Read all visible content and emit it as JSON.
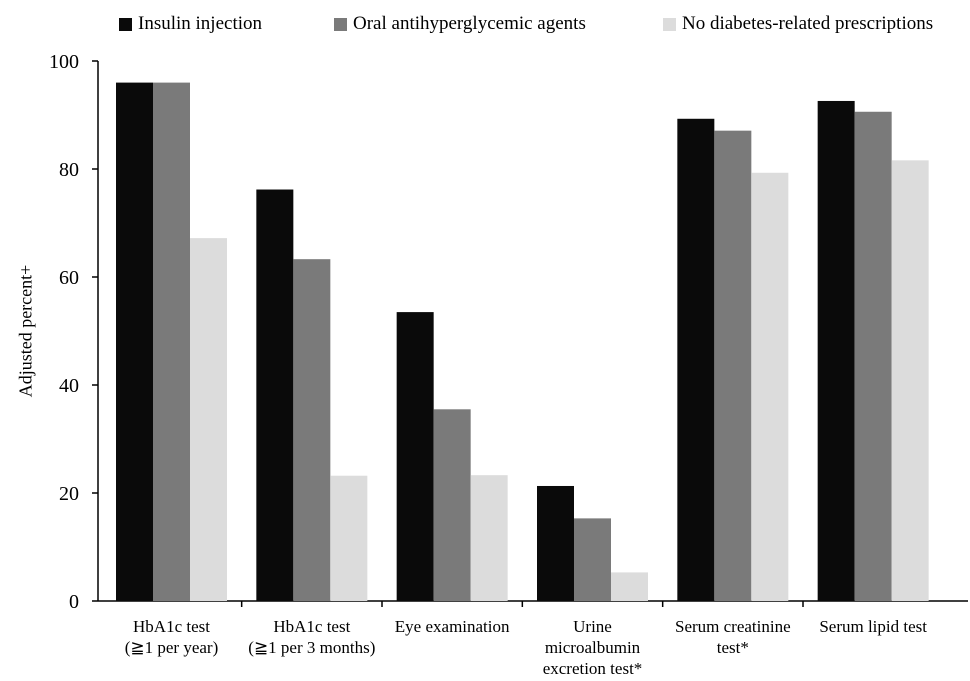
{
  "chart_data": {
    "type": "bar",
    "ylabel": "Adjusted percent+",
    "ylim": [
      0,
      100
    ],
    "yticks": [
      "0",
      "20",
      "40",
      "60",
      "80",
      "100"
    ],
    "grid": false,
    "legend_position": "top",
    "categories": [
      [
        "HbA1c test",
        "(≧1 per year)"
      ],
      [
        "HbA1c test",
        "(≧1 per 3 months)"
      ],
      [
        "Eye examination"
      ],
      [
        "Urine",
        "microalbumin",
        "excretion test*"
      ],
      [
        "Serum creatinine",
        "test*"
      ],
      [
        "Serum lipid test"
      ]
    ],
    "series": [
      {
        "name": "Insulin injection",
        "color": "#0a0a0a",
        "values": [
          96,
          76.2,
          53.5,
          21.3,
          89.3,
          92.6
        ]
      },
      {
        "name": "Oral antihyperglycemic agents",
        "color": "#7a7a7a",
        "values": [
          96,
          63.3,
          35.5,
          15.3,
          87.1,
          90.6
        ]
      },
      {
        "name": "No diabetes-related prescriptions",
        "color": "#dcdcdc",
        "values": [
          67.2,
          23.2,
          23.3,
          5.3,
          79.3,
          81.6
        ]
      }
    ]
  }
}
